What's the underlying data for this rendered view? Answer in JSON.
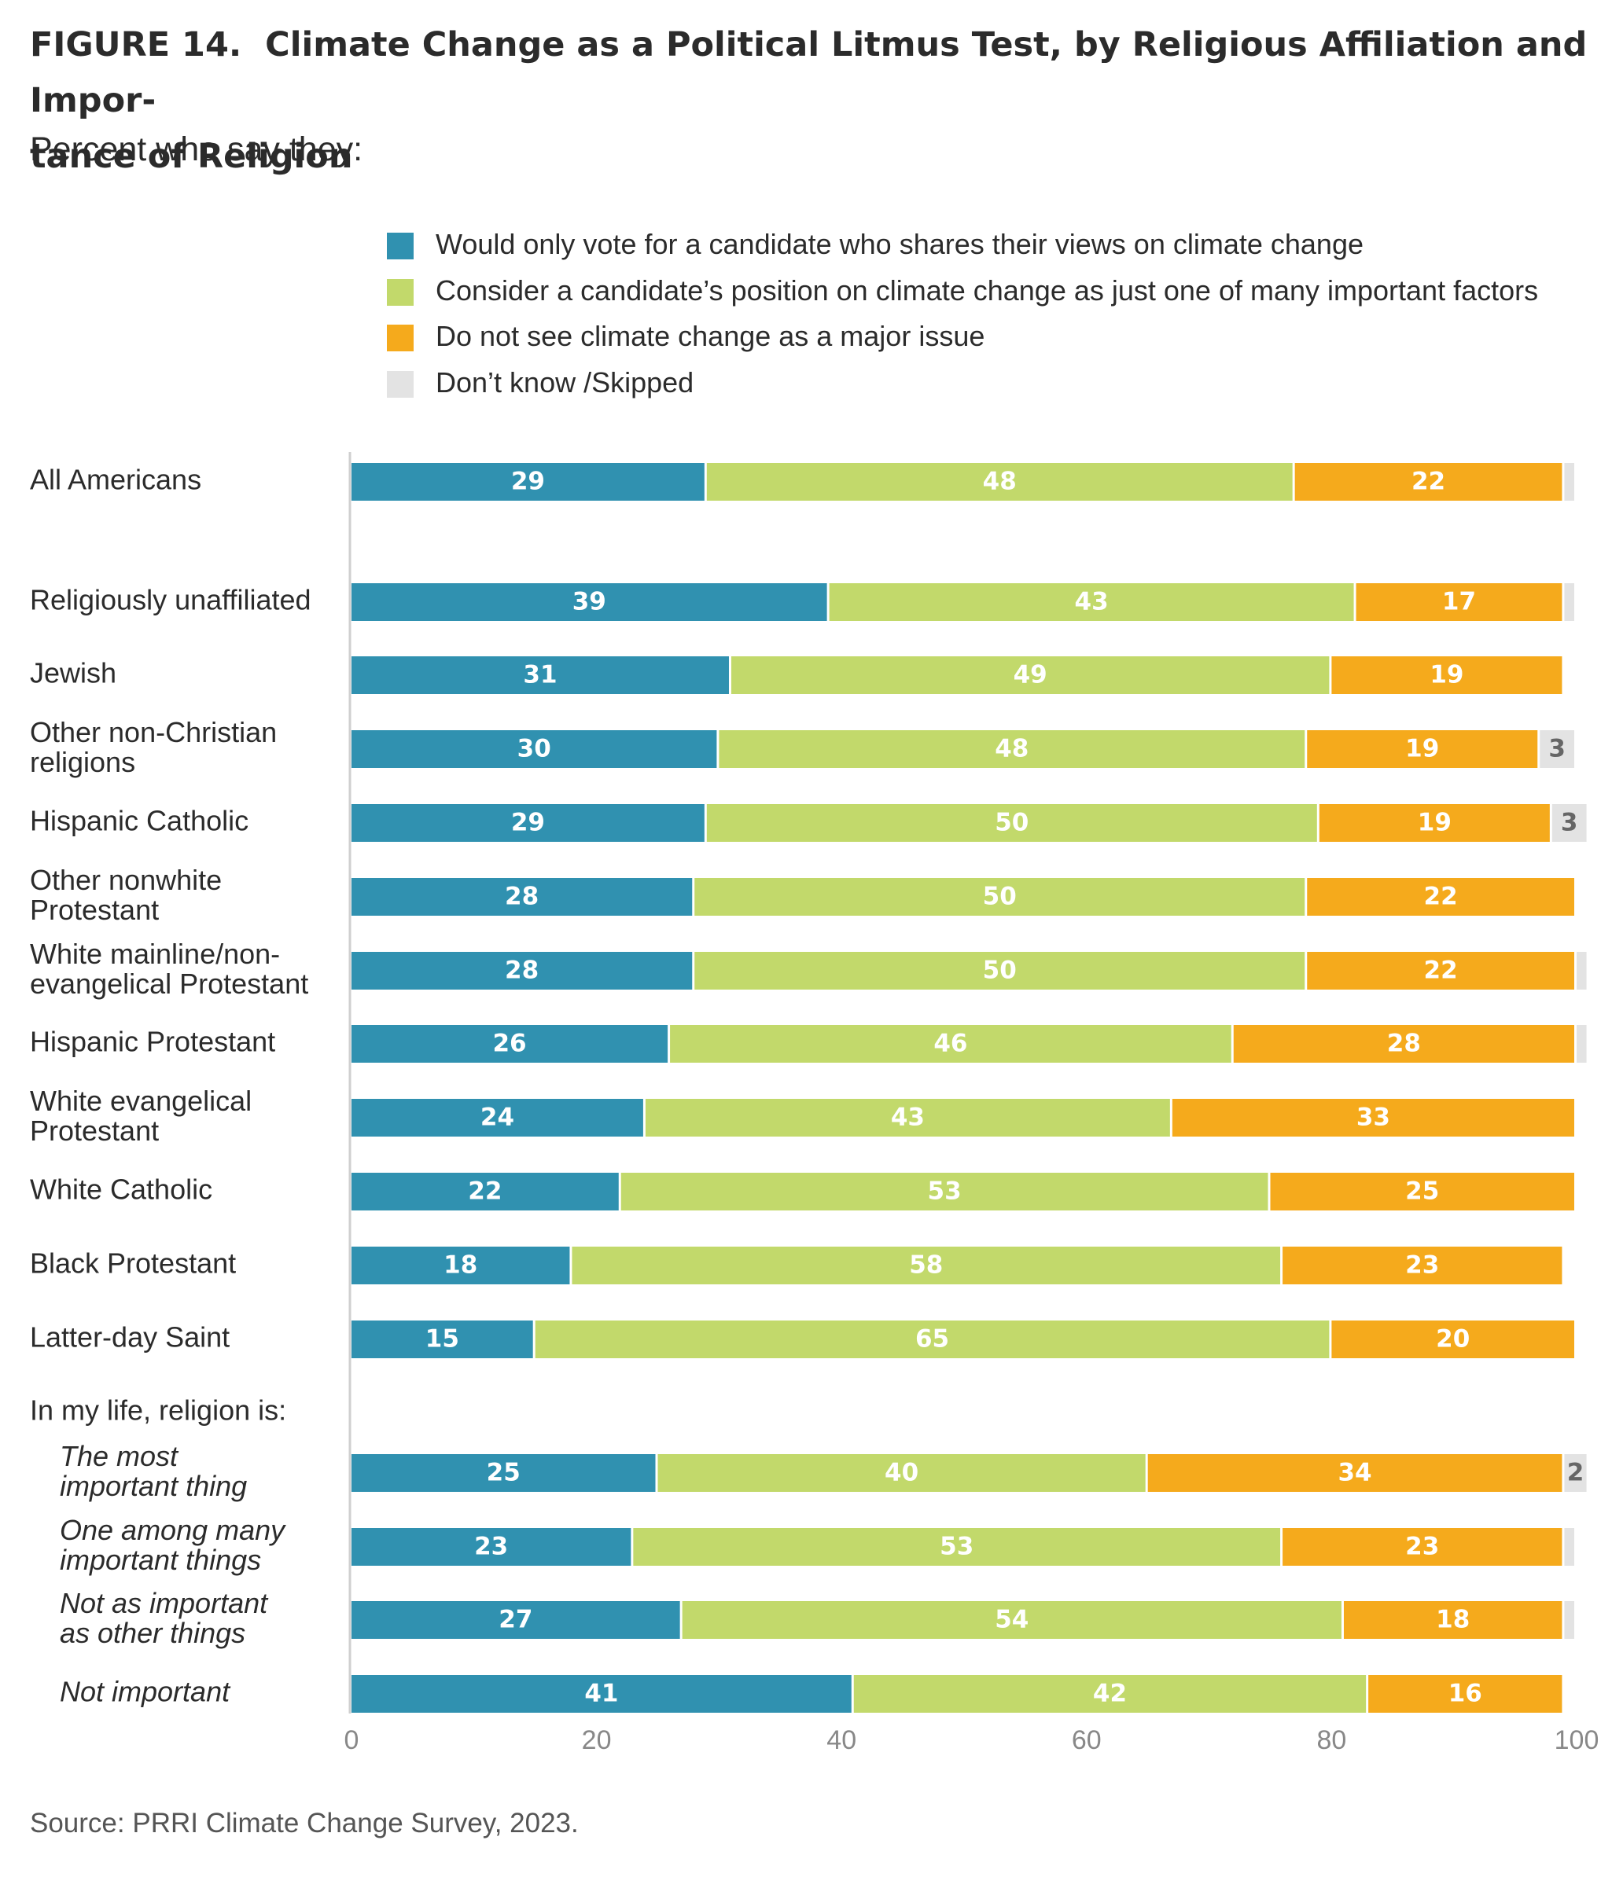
{
  "figure": {
    "title": "FIGURE 14.  Climate Change as a Political Litmus Test, by Religious Affiliation and Importance of Religion",
    "subtitle": "Percent who say they:",
    "source": "Source: PRRI Climate Change Survey, 2023."
  },
  "legend": [
    {
      "label": "Would only vote for a candidate who shares their views on climate change",
      "color": "#3091b0"
    },
    {
      "label": "Consider a candidate’s position on climate change as just one of many important factors",
      "color": "#c2d96b"
    },
    {
      "label": "Do not see climate change as a major issue",
      "color": "#f5aa1c"
    },
    {
      "label": "Don’t know /Skipped",
      "color": "#e3e3e3"
    }
  ],
  "chart_data": {
    "type": "bar",
    "orientation": "horizontal",
    "stacked": true,
    "xlim": [
      0,
      100
    ],
    "x_ticks": [
      0,
      20,
      40,
      60,
      80,
      100
    ],
    "grid": false,
    "legend_position": "top",
    "group_headers": [
      "In my life, religion is:"
    ],
    "categories": [
      "All Americans",
      "Religiously unaffiliated",
      "Jewish",
      "Other non-Christian religions",
      "Hispanic Catholic",
      "Other nonwhite Protestant",
      "White mainline/non-evangelical Protestant",
      "Hispanic Protestant",
      "White evangelical Protestant",
      "White Catholic",
      "Black Protestant",
      "Latter-day Saint",
      "The most important thing",
      "One among many important things",
      "Not as important as other things",
      "Not important"
    ],
    "series": [
      {
        "name": "Would only vote for a candidate who shares their views on climate change",
        "values": [
          29,
          39,
          31,
          30,
          29,
          28,
          28,
          26,
          24,
          22,
          18,
          15,
          25,
          23,
          27,
          41
        ]
      },
      {
        "name": "Consider a candidate’s position on climate change as just one of many important factors",
        "values": [
          48,
          43,
          49,
          48,
          50,
          50,
          50,
          46,
          43,
          53,
          58,
          65,
          40,
          53,
          54,
          42
        ]
      },
      {
        "name": "Do not see climate change as a major issue",
        "values": [
          22,
          17,
          19,
          19,
          19,
          22,
          22,
          28,
          33,
          25,
          23,
          20,
          34,
          23,
          18,
          16
        ]
      },
      {
        "name": "Don’t know /Skipped",
        "values": [
          1,
          1,
          0,
          3,
          3,
          0,
          1,
          1,
          0,
          0,
          0,
          0,
          2,
          1,
          1,
          0
        ]
      }
    ],
    "data_labels_hidden_below": 2
  }
}
